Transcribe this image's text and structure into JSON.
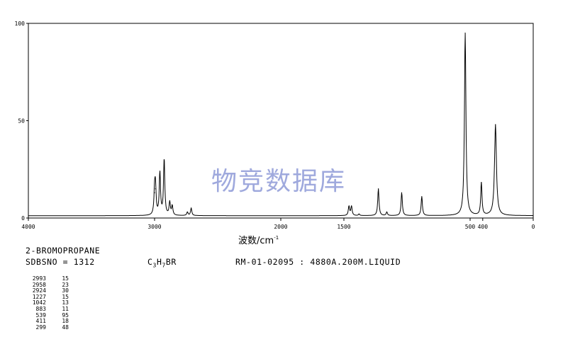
{
  "chart_data": {
    "type": "line",
    "title": "2-BROMOPROPANE",
    "xlabel": "波数/cm",
    "xlabel_sup": "-1",
    "ylabel": "",
    "xlim": [
      4000,
      0
    ],
    "ylim": [
      0,
      100
    ],
    "x_ticks": [
      4000,
      3000,
      2000,
      1500,
      500,
      400,
      0
    ],
    "x_tick_labels": [
      "4000",
      "3000",
      "2000",
      "1500",
      "500",
      "400",
      "0"
    ],
    "y_ticks": [
      0,
      50,
      100
    ],
    "y_tick_labels": [
      "0",
      "50",
      "100"
    ],
    "grid": false,
    "legend": "none",
    "baseline": 1.2,
    "series": [
      {
        "peaks": [
          {
            "x": 3000,
            "y": 13
          },
          {
            "x": 2993,
            "y": 15
          },
          {
            "x": 2958,
            "y": 23
          },
          {
            "x": 2924,
            "y": 30
          },
          {
            "x": 2880,
            "y": 8
          },
          {
            "x": 2860,
            "y": 6
          },
          {
            "x": 2740,
            "y": 3
          },
          {
            "x": 2710,
            "y": 5
          },
          {
            "x": 1460,
            "y": 6
          },
          {
            "x": 1440,
            "y": 6
          },
          {
            "x": 1380,
            "y": 2
          },
          {
            "x": 1227,
            "y": 15
          },
          {
            "x": 1160,
            "y": 3
          },
          {
            "x": 1042,
            "y": 13
          },
          {
            "x": 883,
            "y": 11
          },
          {
            "x": 539,
            "y": 95
          },
          {
            "x": 411,
            "y": 18
          },
          {
            "x": 299,
            "y": 48
          }
        ]
      }
    ]
  },
  "header": {
    "compound": "2-BROMOPROPANE",
    "sdbs_label": "SDBSNO = 1312",
    "formula_c": "C",
    "formula_c_sub": "3",
    "formula_h": "H",
    "formula_h_sub": "7",
    "formula_rest": "BR",
    "conditions": "RM-01-02095 : 4880A.200M.LIQUID"
  },
  "watermark": "物竞数据库",
  "peak_table": [
    {
      "x": "2993",
      "v": "15"
    },
    {
      "x": "2958",
      "v": "23"
    },
    {
      "x": "2924",
      "v": "30"
    },
    {
      "x": "1227",
      "v": "15"
    },
    {
      "x": "1042",
      "v": "13"
    },
    {
      "x": "883",
      "v": "11"
    },
    {
      "x": "539",
      "v": "95"
    },
    {
      "x": "411",
      "v": "18"
    },
    {
      "x": "299",
      "v": "48"
    }
  ]
}
